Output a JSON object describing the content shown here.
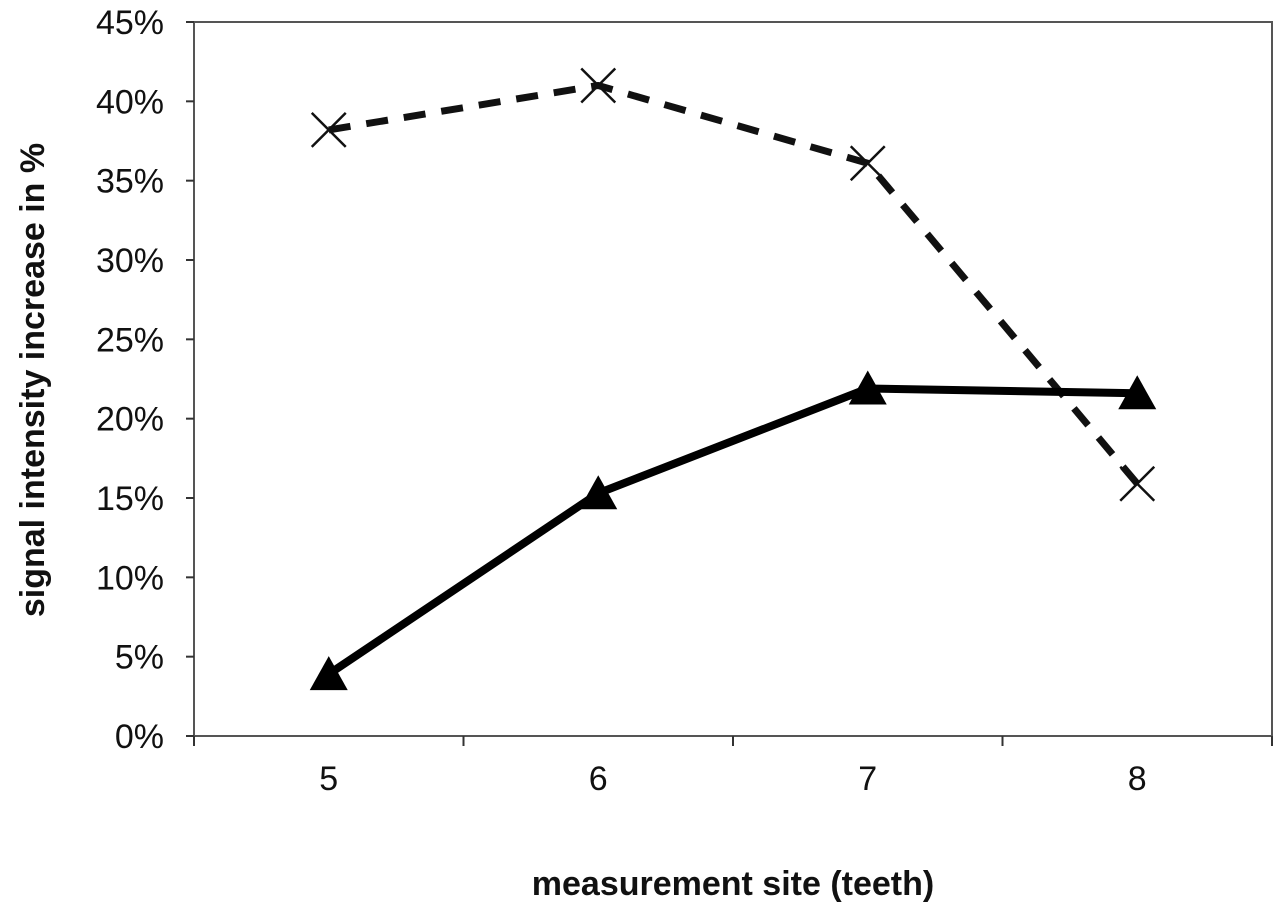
{
  "chart_data": {
    "type": "line",
    "title": "",
    "xlabel": "measurement site (teeth)",
    "ylabel": "signal intensity increase in %",
    "categories": [
      "5",
      "6",
      "7",
      "8"
    ],
    "ylim": [
      0,
      45
    ],
    "y_ticks": [
      0,
      5,
      10,
      15,
      20,
      25,
      30,
      35,
      40,
      45
    ],
    "y_tick_format": "percent",
    "grid": false,
    "legend": "none",
    "series": [
      {
        "values": [
          38.2,
          41.0,
          36.1,
          15.9
        ],
        "marker": "x",
        "line_style": "dashed",
        "color": "#111111"
      },
      {
        "values": [
          3.9,
          15.3,
          21.9,
          21.6
        ],
        "marker": "triangle",
        "line_style": "solid",
        "color": "#000000"
      }
    ]
  }
}
